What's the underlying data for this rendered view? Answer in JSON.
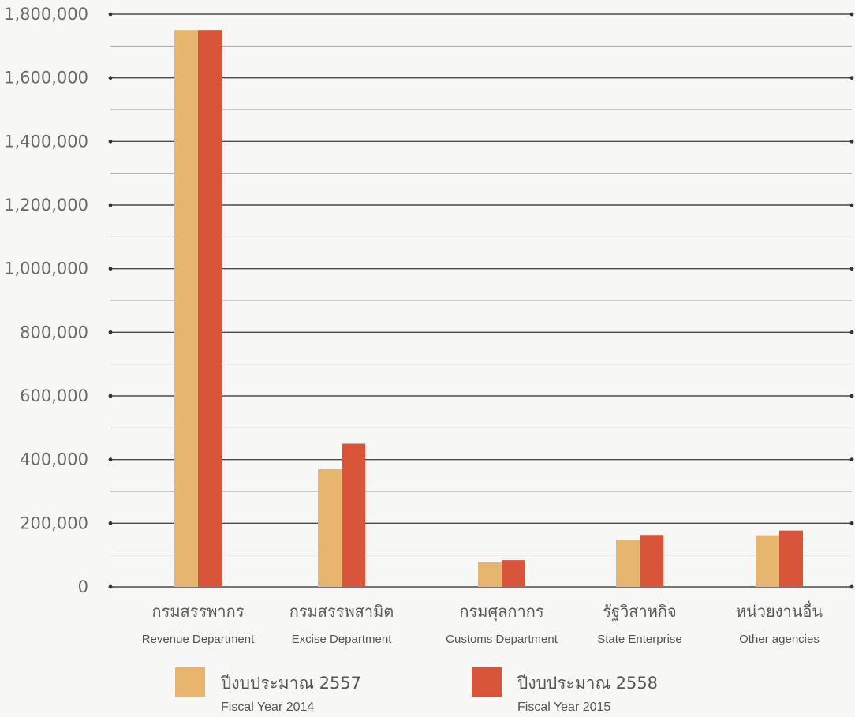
{
  "chart_data": {
    "type": "bar",
    "categories": [
      {
        "th": "กรมสรรพากร",
        "en": "Revenue Department"
      },
      {
        "th": "กรมสรรพสามิต",
        "en": "Excise Department"
      },
      {
        "th": "กรมศุลกากร",
        "en": "Customs Department"
      },
      {
        "th": "รัฐวิสาหกิจ",
        "en": "State Enterprise"
      },
      {
        "th": "หน่วยงานอื่น",
        "en": "Other agencies"
      }
    ],
    "series": [
      {
        "name_th": "ปีงบประมาณ 2557",
        "name_en": "Fiscal Year 2014",
        "color": "#e8b56f",
        "values": [
          1750000,
          370000,
          77000,
          148000,
          162000
        ]
      },
      {
        "name_th": "ปีงบประมาณ 2558",
        "name_en": "Fiscal Year 2015",
        "color": "#d9553a",
        "values": [
          1750000,
          450000,
          84000,
          163000,
          177000
        ]
      }
    ],
    "ylim": [
      0,
      1800000
    ],
    "yticks": [
      0,
      200000,
      400000,
      600000,
      800000,
      1000000,
      1200000,
      1400000,
      1600000,
      1800000
    ],
    "ytick_labels": [
      "0",
      "200,000",
      "400,000",
      "600,000",
      "800,000",
      "1,000,000",
      "1,200,000",
      "1,400,000",
      "1,600,000",
      "1,800,000"
    ],
    "minor_grid_step": 100000,
    "grid": true,
    "legend_position": "bottom",
    "title": "",
    "xlabel": "",
    "ylabel": ""
  }
}
